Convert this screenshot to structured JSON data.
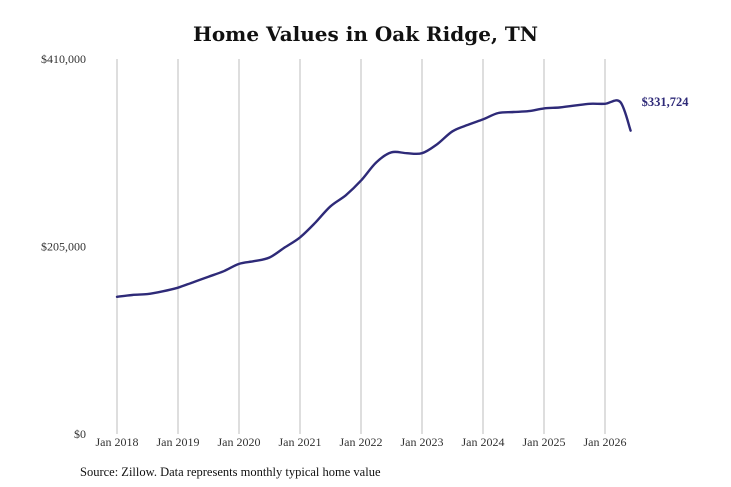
{
  "chart_data": {
    "type": "line",
    "title": "Home Values in Oak Ridge, TN",
    "xlabel": "",
    "ylabel": "",
    "ylim": [
      0,
      410000
    ],
    "y_ticks": [
      {
        "value": 0,
        "label": "$0"
      },
      {
        "value": 205000,
        "label": "$205,000"
      },
      {
        "value": 410000,
        "label": "$410,000"
      }
    ],
    "x_ticks": [
      {
        "value": 2018,
        "label": "Jan 2018"
      },
      {
        "value": 2019,
        "label": "Jan 2019"
      },
      {
        "value": 2020,
        "label": "Jan 2020"
      },
      {
        "value": 2021,
        "label": "Jan 2021"
      },
      {
        "value": 2022,
        "label": "Jan 2022"
      },
      {
        "value": 2023,
        "label": "Jan 2023"
      },
      {
        "value": 2024,
        "label": "Jan 2024"
      },
      {
        "value": 2025,
        "label": "Jan 2025"
      },
      {
        "value": 2026,
        "label": "Jan 2026"
      }
    ],
    "xlim": [
      2018,
      2026.42
    ],
    "vertical_grid": true,
    "line_color": "#2e2a78",
    "end_label": "$331,724",
    "series": [
      {
        "name": "",
        "x": [
          2018.0,
          2018.25,
          2018.5,
          2018.75,
          2019.0,
          2019.25,
          2019.5,
          2019.75,
          2020.0,
          2020.25,
          2020.5,
          2020.75,
          2021.0,
          2021.25,
          2021.5,
          2021.75,
          2022.0,
          2022.25,
          2022.5,
          2022.75,
          2023.0,
          2023.25,
          2023.5,
          2023.75,
          2024.0,
          2024.25,
          2024.5,
          2024.75,
          2025.0,
          2025.25,
          2025.5,
          2025.75,
          2026.0,
          2026.25,
          2026.42
        ],
        "values": [
          150000,
          152000,
          153000,
          156000,
          160000,
          166000,
          172000,
          178000,
          186000,
          189000,
          193000,
          204000,
          215000,
          231000,
          249000,
          261000,
          277000,
          297000,
          308000,
          307000,
          307000,
          317000,
          331000,
          338000,
          344000,
          351000,
          352000,
          353000,
          356000,
          357000,
          359000,
          361000,
          361000,
          363000,
          331724
        ]
      }
    ]
  }
}
